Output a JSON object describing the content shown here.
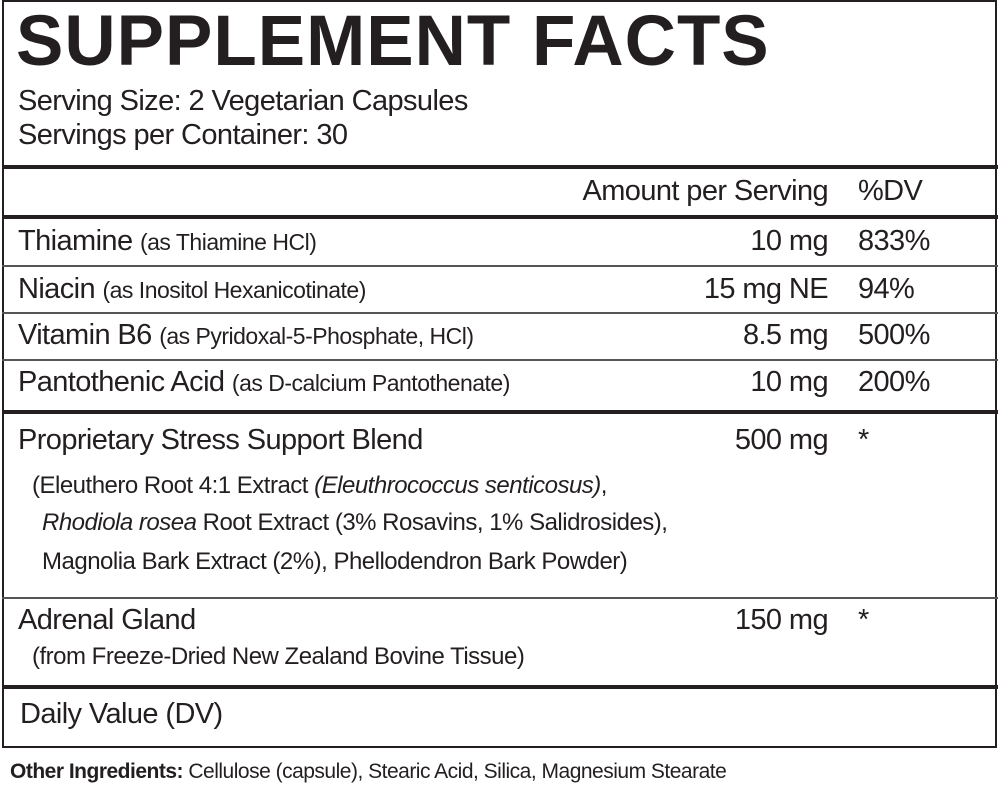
{
  "title": "SUPPLEMENT FACTS",
  "serving_size": "Serving Size: 2 Vegetarian Capsules",
  "servings_per_container": "Servings per Container: 30",
  "header": {
    "amount": "Amount per Serving",
    "dv": "%DV"
  },
  "nutrients": [
    {
      "name": "Thiamine",
      "source": "(as Thiamine HCl)",
      "amount": "10 mg",
      "dv": "833%"
    },
    {
      "name": "Niacin",
      "source": "(as Inositol Hexanicotinate)",
      "amount": "15 mg NE",
      "dv": "94%"
    },
    {
      "name": "Vitamin B6",
      "source": "(as Pyridoxal-5-Phosphate, HCl)",
      "amount": "8.5 mg",
      "dv": "500%"
    },
    {
      "name": "Pantothenic Acid",
      "source": "(as D-calcium Pantothenate)",
      "amount": "10 mg",
      "dv": "200%"
    }
  ],
  "blend": {
    "name": "Proprietary Stress Support Blend",
    "amount": "500 mg",
    "dv": "*",
    "line1_a": "(Eleuthero Root 4:1 Extract ",
    "line1_i": "(Eleuthrococcus senticosus)",
    "line1_b": ",",
    "line2_i": "Rhodiola rosea",
    "line2_b": " Root Extract (3% Rosavins, 1% Salidrosides),",
    "line3": "Magnolia Bark Extract (2%), Phellodendron Bark Powder)"
  },
  "adrenal": {
    "name": "Adrenal Gland",
    "amount": "150 mg",
    "dv": "*",
    "source": "(from Freeze-Dried New Zealand Bovine Tissue)"
  },
  "footnote": "Daily Value (DV)",
  "other_ingredients": {
    "label": "Other Ingredients:",
    "text": " Cellulose (capsule), Stearic Acid, Silica, Magnesium Stearate"
  }
}
